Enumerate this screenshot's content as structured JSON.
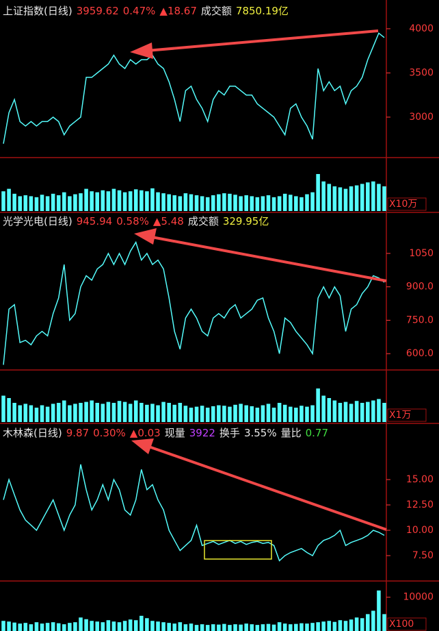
{
  "chart_data": [
    {
      "type": "line",
      "color": "#54fcfc",
      "header": [
        {
          "text": "上证指数(日线)",
          "color": "#e8e8e8"
        },
        {
          "text": "3959.62",
          "color": "#ff4040"
        },
        {
          "text": "0.47%",
          "color": "#ff4040"
        },
        {
          "text": "▲18.67",
          "color": "#ff4040"
        },
        {
          "text": "成交额",
          "color": "#e8e8e8"
        },
        {
          "text": "7850.19亿",
          "color": "#f0f040"
        }
      ],
      "values": [
        2700,
        3050,
        3200,
        2950,
        2900,
        2950,
        2900,
        2950,
        2950,
        3000,
        2950,
        2800,
        2900,
        2950,
        3000,
        3450,
        3450,
        3500,
        3550,
        3600,
        3700,
        3600,
        3550,
        3650,
        3600,
        3650,
        3650,
        3700,
        3600,
        3550,
        3400,
        3200,
        2950,
        3300,
        3350,
        3200,
        3100,
        2950,
        3200,
        3300,
        3250,
        3350,
        3350,
        3300,
        3250,
        3250,
        3150,
        3100,
        3050,
        3000,
        2900,
        2800,
        3100,
        3150,
        3000,
        2900,
        2750,
        3550,
        3300,
        3400,
        3300,
        3350,
        3150,
        3300,
        3350,
        3450,
        3650,
        3800,
        3950,
        3900
      ],
      "ylim": [
        2558,
        4108
      ],
      "yticks": [
        3000,
        3500,
        4000
      ]
    },
    {
      "type": "bar",
      "color": "#54fcfc",
      "unit_label": "X10万",
      "values": [
        40,
        45,
        35,
        30,
        32,
        30,
        28,
        33,
        30,
        35,
        32,
        38,
        30,
        34,
        36,
        45,
        40,
        38,
        42,
        40,
        45,
        42,
        38,
        40,
        44,
        42,
        40,
        46,
        38,
        36,
        34,
        32,
        30,
        36,
        34,
        32,
        30,
        28,
        32,
        34,
        36,
        35,
        33,
        30,
        32,
        30,
        28,
        30,
        32,
        28,
        30,
        35,
        33,
        30,
        28,
        34,
        38,
        75,
        60,
        55,
        50,
        48,
        45,
        50,
        52,
        55,
        58,
        60,
        55,
        50
      ],
      "ylim": [
        0,
        100
      ]
    },
    {
      "type": "line",
      "color": "#54fcfc",
      "header": [
        {
          "text": "光学光电(日线)",
          "color": "#e8e8e8"
        },
        {
          "text": "945.94",
          "color": "#ff4040"
        },
        {
          "text": "0.58%",
          "color": "#ff4040"
        },
        {
          "text": "▲5.48",
          "color": "#ff4040"
        },
        {
          "text": "成交额",
          "color": "#e8e8e8"
        },
        {
          "text": "329.95亿",
          "color": "#f0f040"
        }
      ],
      "values": [
        550,
        800,
        820,
        650,
        660,
        640,
        680,
        700,
        680,
        780,
        850,
        1000,
        750,
        780,
        900,
        950,
        930,
        980,
        1000,
        1050,
        1000,
        1050,
        1000,
        1060,
        1100,
        1020,
        1050,
        1000,
        1020,
        980,
        850,
        700,
        620,
        760,
        800,
        760,
        700,
        680,
        760,
        780,
        760,
        800,
        820,
        760,
        780,
        800,
        840,
        850,
        760,
        700,
        600,
        760,
        740,
        700,
        670,
        640,
        600,
        850,
        900,
        850,
        900,
        860,
        700,
        800,
        820,
        870,
        900,
        950,
        940,
        920
      ],
      "ylim": [
        533,
        1148
      ],
      "yticks": [
        {
          "value": 600,
          "label": "600.0"
        },
        {
          "value": 750,
          "label": "750.0"
        },
        {
          "value": 900,
          "label": "900.0"
        },
        1050
      ]
    },
    {
      "type": "bar",
      "color": "#54fcfc",
      "unit_label": "X1万",
      "values": [
        55,
        50,
        40,
        35,
        38,
        35,
        30,
        35,
        32,
        38,
        40,
        45,
        35,
        38,
        40,
        42,
        45,
        40,
        38,
        42,
        40,
        44,
        42,
        38,
        45,
        40,
        36,
        38,
        35,
        42,
        40,
        36,
        40,
        34,
        30,
        32,
        34,
        30,
        33,
        35,
        34,
        32,
        36,
        38,
        35,
        33,
        30,
        35,
        38,
        30,
        40,
        36,
        32,
        30,
        34,
        32,
        35,
        70,
        55,
        50,
        45,
        40,
        42,
        38,
        44,
        40,
        42,
        45,
        48,
        40
      ],
      "ylim": [
        0,
        100
      ]
    },
    {
      "type": "line",
      "color": "#54fcfc",
      "header": [
        {
          "text": "木林森(日线)",
          "color": "#e8e8e8"
        },
        {
          "text": "9.87",
          "color": "#ff4040"
        },
        {
          "text": "0.30%",
          "color": "#ff4040"
        },
        {
          "text": "▲0.03",
          "color": "#ff4040"
        },
        {
          "text": "现量",
          "color": "#e8e8e8"
        },
        {
          "text": "3922",
          "color": "#c040ff"
        },
        {
          "text": "换手",
          "color": "#e8e8e8"
        },
        {
          "text": "3.55%",
          "color": "#e8e8e8"
        },
        {
          "text": "量比",
          "color": "#e8e8e8"
        },
        {
          "text": "0.77",
          "color": "#40e040"
        }
      ],
      "values": [
        13,
        15,
        13.5,
        12,
        11,
        10.5,
        10,
        11,
        12,
        13,
        11.5,
        10,
        11.5,
        12.5,
        16.5,
        14,
        12,
        13,
        14.5,
        13,
        15,
        14,
        12,
        11.5,
        13,
        16,
        14,
        14.5,
        13,
        12,
        10,
        9,
        8,
        8.5,
        9,
        10.5,
        8.5,
        8.7,
        8.9,
        8.6,
        8.8,
        9,
        8.7,
        8.9,
        8.6,
        8.8,
        8.9,
        8.7,
        8.8,
        8.5,
        7,
        7.5,
        7.8,
        8,
        8.2,
        7.8,
        7.5,
        8.5,
        9,
        9.2,
        9.5,
        10,
        8.5,
        8.8,
        9,
        9.2,
        9.5,
        10,
        9.8,
        9.5
      ],
      "ylim": [
        5.2,
        18.65
      ],
      "yticks": [
        {
          "value": 7.5,
          "label": "7.50"
        },
        {
          "value": 10,
          "label": "10.00"
        },
        {
          "value": 12.5,
          "label": "12.50"
        },
        {
          "value": 15,
          "label": "15.00"
        }
      ]
    },
    {
      "type": "bar",
      "color": "#54fcfc",
      "unit_label": "X100",
      "values": [
        3000,
        2800,
        2500,
        2200,
        2400,
        2000,
        2600,
        2200,
        2400,
        2600,
        2300,
        2000,
        2400,
        2600,
        4000,
        3500,
        3000,
        2800,
        2600,
        3200,
        2800,
        2600,
        3000,
        3400,
        3200,
        4500,
        3800,
        3000,
        2800,
        2600,
        2400,
        2200,
        2600,
        2000,
        2200,
        1800,
        2000,
        1800,
        2000,
        1900,
        2100,
        1800,
        2000,
        1900,
        2200,
        2000,
        1800,
        2000,
        2100,
        1900,
        2600,
        2200,
        2000,
        2100,
        2300,
        2200,
        2400,
        2600,
        2800,
        3000,
        2700,
        3200,
        3000,
        3400,
        4000,
        3800,
        5000,
        6000,
        12000,
        5000
      ],
      "ylim": [
        0,
        14000
      ],
      "yticks": [
        10000
      ]
    }
  ]
}
